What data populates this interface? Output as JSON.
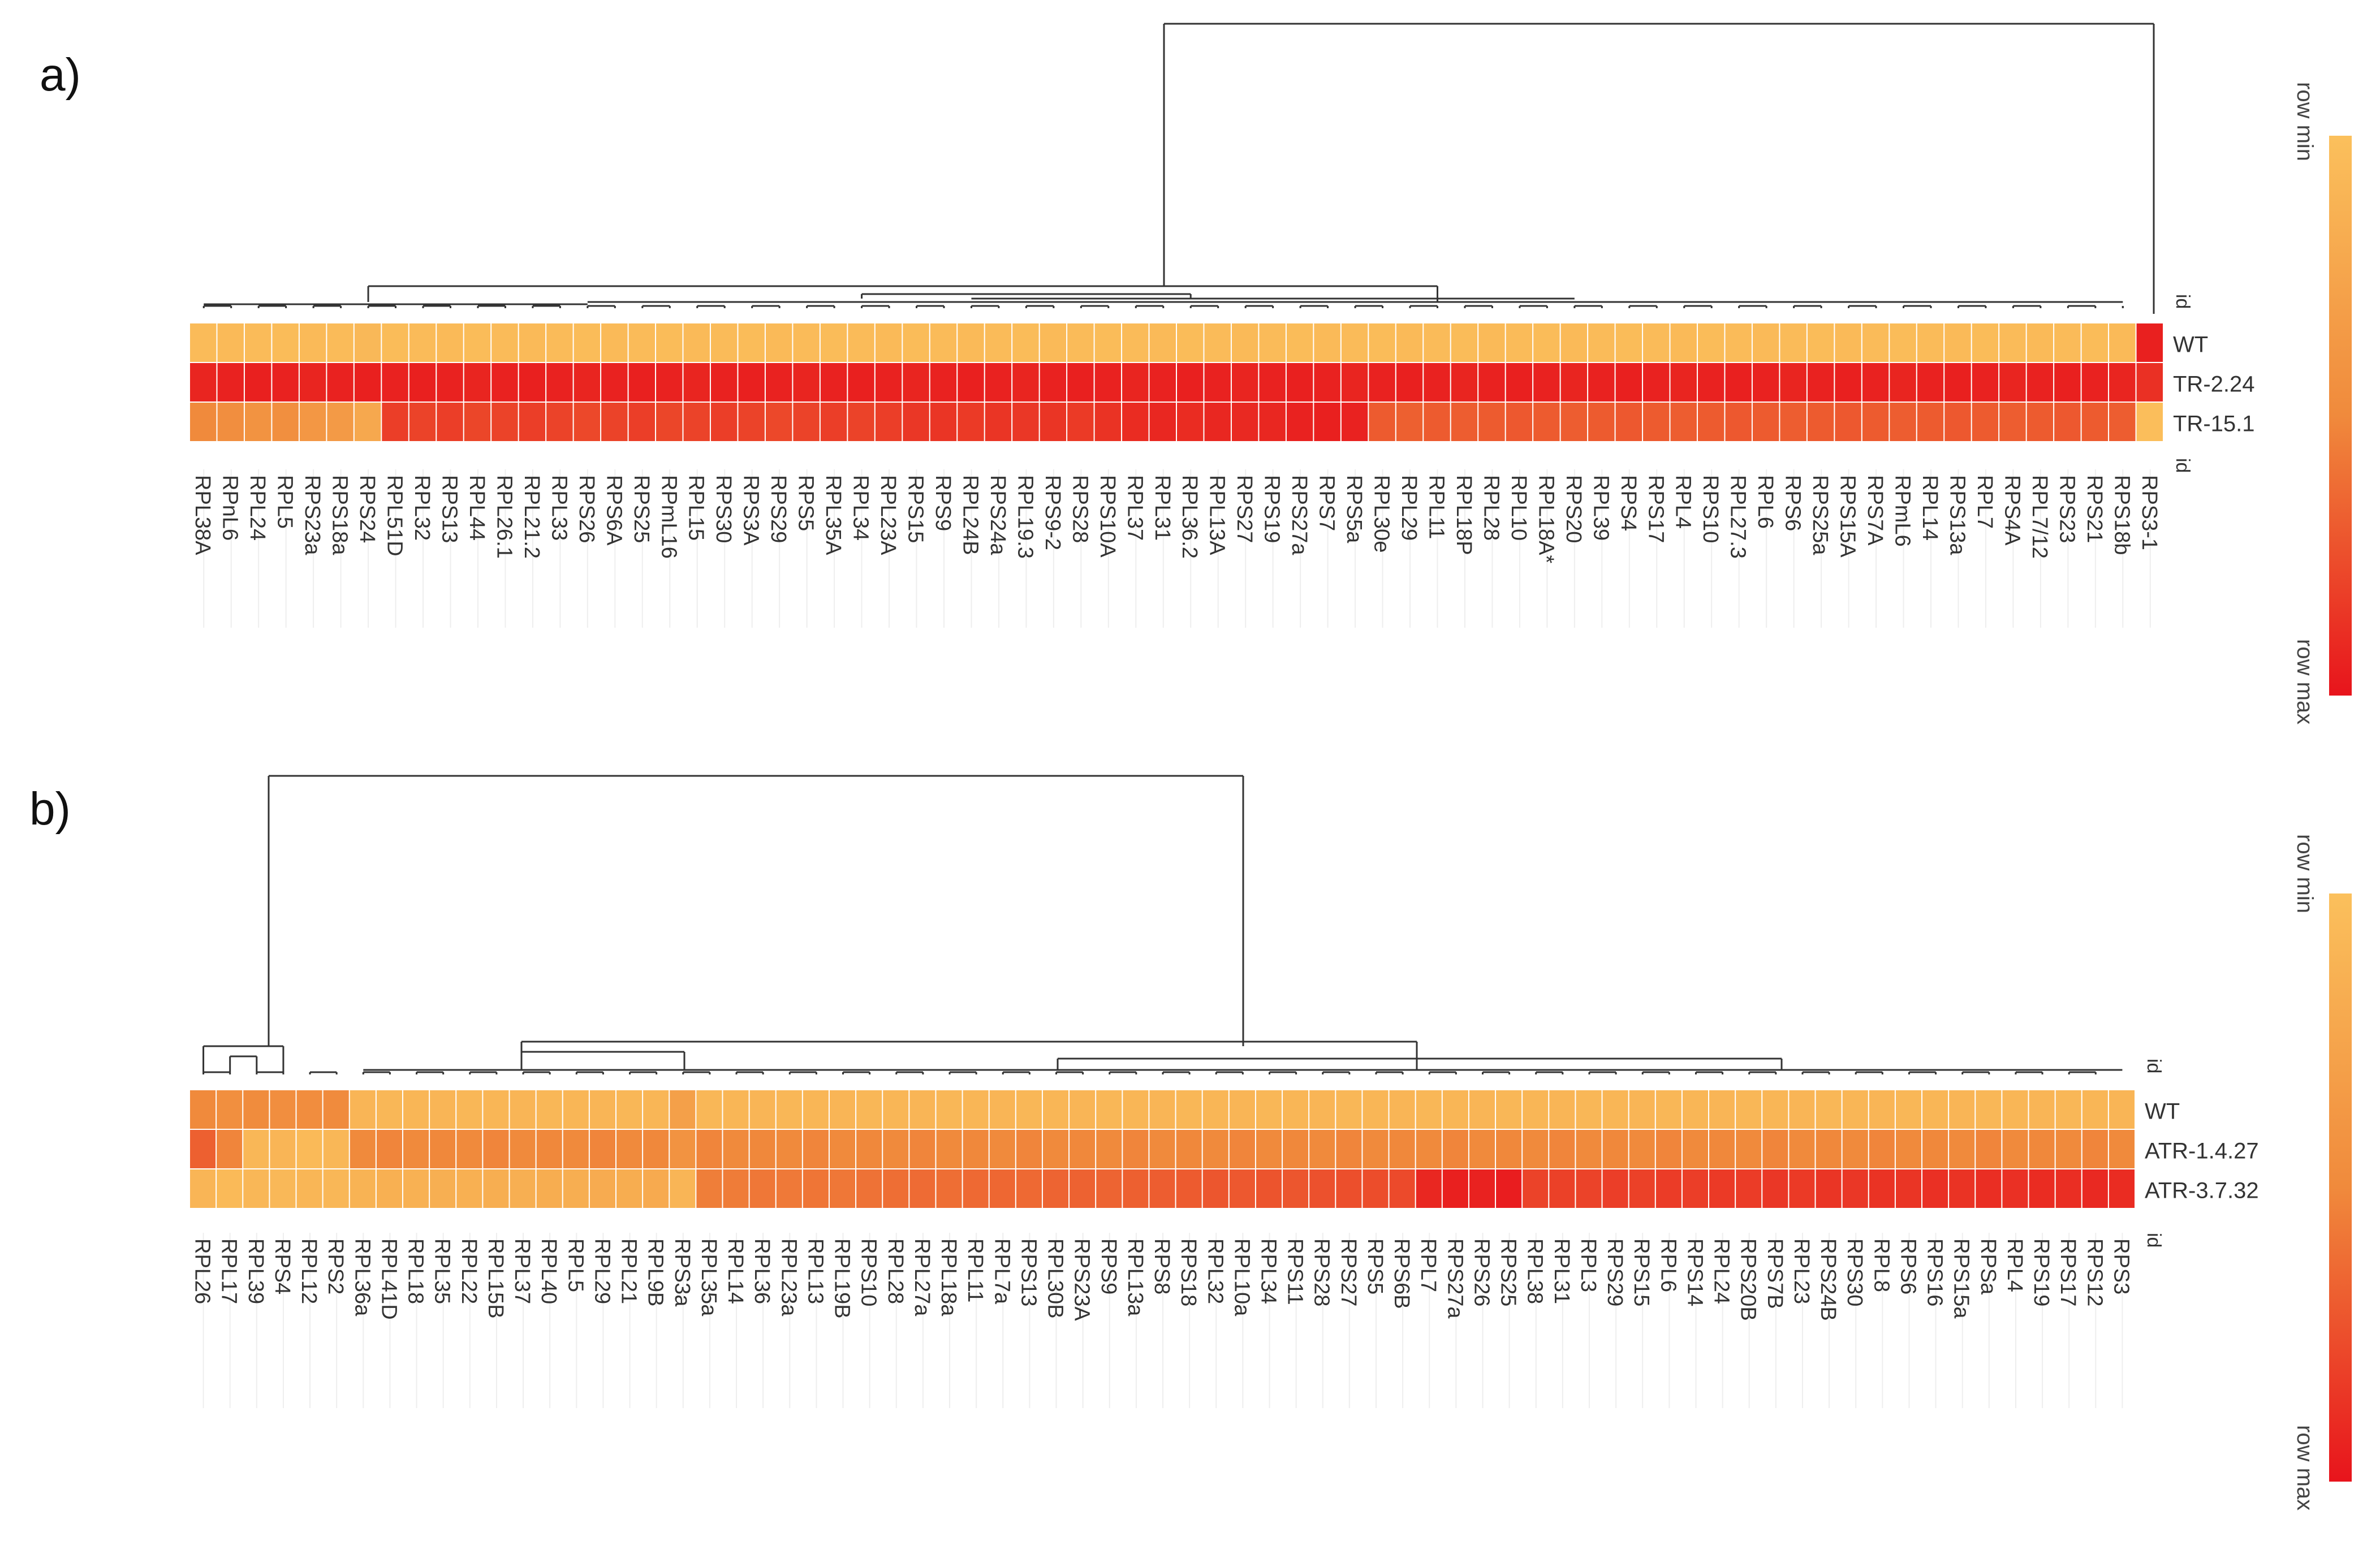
{
  "colors": {
    "min": "#fbc05c",
    "mid": "#f08a3c",
    "max": "#e8141c",
    "background": "#ffffff",
    "tree": "#333333"
  },
  "chart_data": [
    {
      "type": "heatmap",
      "panel_label": "a)",
      "id_header": "id",
      "rows": [
        "WT",
        "TR-2.24",
        "TR-15.1"
      ],
      "columns": [
        "RPL38A",
        "RPnL6",
        "RPL24",
        "RPL5",
        "RPS23a",
        "RPS18a",
        "RPS24",
        "RPL51D",
        "RPL32",
        "RPS13",
        "RPL44",
        "RPL26.1",
        "RPL21.2",
        "RPL33",
        "RPS26",
        "RPS6A",
        "RPS25",
        "RPmL16",
        "RPL15",
        "RPS30",
        "RPS3A",
        "RPS29",
        "RPS5",
        "RPL35A",
        "RPL34",
        "RPL23A",
        "RPS15",
        "RPS9",
        "RPL24B",
        "RPS24a",
        "RPL19.3",
        "RPS9-2",
        "RPS28",
        "RPS10A",
        "RPL37",
        "RPL31",
        "RPL36.2",
        "RPL13A",
        "RPS27",
        "RPS19",
        "RPS27a",
        "RPS7",
        "RPS5a",
        "RPL30e",
        "RPL29",
        "RPL11",
        "RPL18P",
        "RPL28",
        "RPL10",
        "RPL18A*",
        "RPS20",
        "RPL39",
        "RPS4",
        "RPS17",
        "RPL4",
        "RPS10",
        "RPL27.3",
        "RPL6",
        "RPS6",
        "RPS25a",
        "RPS15A",
        "RPS7A",
        "RPmL6",
        "RPL14",
        "RPS13a",
        "RPL7",
        "RPS4A",
        "RPL7/12",
        "RPS23",
        "RPS21",
        "RPS18b",
        "RPS3-1"
      ],
      "values": [
        [
          0.05,
          0.06,
          0.05,
          0.04,
          0.06,
          0.05,
          0.07,
          0.04,
          0.05,
          0.06,
          0.04,
          0.05,
          0.06,
          0.05,
          0.04,
          0.06,
          0.05,
          0.04,
          0.06,
          0.05,
          0.04,
          0.06,
          0.05,
          0.04,
          0.05,
          0.06,
          0.04,
          0.05,
          0.06,
          0.05,
          0.04,
          0.06,
          0.05,
          0.04,
          0.05,
          0.06,
          0.04,
          0.05,
          0.06,
          0.05,
          0.04,
          0.06,
          0.05,
          0.04,
          0.06,
          0.05,
          0.04,
          0.06,
          0.05,
          0.04,
          0.06,
          0.05,
          0.04,
          0.05,
          0.06,
          0.04,
          0.05,
          0.06,
          0.05,
          0.04,
          0.06,
          0.05,
          0.04,
          0.05,
          0.06,
          0.04,
          0.05,
          0.06,
          0.05,
          0.04,
          0.06,
          0.95
        ],
        [
          0.93,
          0.94,
          0.95,
          0.94,
          0.93,
          0.94,
          0.95,
          0.94,
          0.95,
          0.94,
          0.93,
          0.94,
          0.95,
          0.94,
          0.93,
          0.94,
          0.95,
          0.94,
          0.93,
          0.94,
          0.95,
          0.94,
          0.93,
          0.94,
          0.95,
          0.94,
          0.93,
          0.94,
          0.95,
          0.94,
          0.93,
          0.94,
          0.95,
          0.94,
          0.93,
          0.94,
          0.95,
          0.94,
          0.93,
          0.94,
          0.95,
          0.94,
          0.93,
          0.94,
          0.95,
          0.94,
          0.93,
          0.94,
          0.95,
          0.94,
          0.93,
          0.94,
          0.95,
          0.94,
          0.93,
          0.94,
          0.95,
          0.94,
          0.93,
          0.94,
          0.95,
          0.94,
          0.93,
          0.94,
          0.95,
          0.94,
          0.93,
          0.94,
          0.95,
          0.94,
          0.93,
          0.88
        ],
        [
          0.5,
          0.46,
          0.42,
          0.45,
          0.38,
          0.35,
          0.22,
          0.82,
          0.8,
          0.82,
          0.79,
          0.8,
          0.82,
          0.8,
          0.78,
          0.8,
          0.82,
          0.79,
          0.8,
          0.82,
          0.8,
          0.78,
          0.8,
          0.82,
          0.8,
          0.82,
          0.85,
          0.86,
          0.84,
          0.86,
          0.85,
          0.86,
          0.84,
          0.87,
          0.9,
          0.92,
          0.9,
          0.92,
          0.91,
          0.92,
          0.94,
          0.95,
          0.94,
          0.7,
          0.68,
          0.7,
          0.69,
          0.7,
          0.71,
          0.7,
          0.69,
          0.7,
          0.71,
          0.7,
          0.69,
          0.7,
          0.71,
          0.7,
          0.69,
          0.7,
          0.71,
          0.7,
          0.69,
          0.7,
          0.71,
          0.7,
          0.69,
          0.7,
          0.71,
          0.7,
          0.69,
          0.02
        ]
      ],
      "scale": {
        "min_label": "row min",
        "max_label": "row max"
      }
    },
    {
      "type": "heatmap",
      "panel_label": "b)",
      "id_header": "id",
      "rows": [
        "WT",
        "ATR-1.4.27",
        "ATR-3.7.32"
      ],
      "columns": [
        "RPL26",
        "RPL17",
        "RPL39",
        "RPS4",
        "RPL12",
        "RPS2",
        "RPL36a",
        "RPL41D",
        "RPL18",
        "RPL35",
        "RPL22",
        "RPL15B",
        "RPL37",
        "RPL40",
        "RPL5",
        "RPL29",
        "RPL21",
        "RPL9B",
        "RPS3a",
        "RPL35a",
        "RPL14",
        "RPL36",
        "RPL23a",
        "RPL13",
        "RPL19B",
        "RPS10",
        "RPL28",
        "RPL27a",
        "RPL18a",
        "RPL11",
        "RPL7a",
        "RPS13",
        "RPL30B",
        "RPS23A",
        "RPS9",
        "RPL13a",
        "RPS8",
        "RPS18",
        "RPL32",
        "RPL10a",
        "RPL34",
        "RPS11",
        "RPS28",
        "RPS27",
        "RPS5",
        "RPS6B",
        "RPL7",
        "RPS27a",
        "RPS26",
        "RPS25",
        "RPL38",
        "RPL31",
        "RPL3",
        "RPS29",
        "RPS15",
        "RPL6",
        "RPS14",
        "RPL24",
        "RPS20B",
        "RPS7B",
        "RPL23",
        "RPS24B",
        "RPS30",
        "RPL8",
        "RPS6",
        "RPS16",
        "RPS15a",
        "RPSa",
        "RPL4",
        "RPS19",
        "RPS17",
        "RPS12",
        "RPS3"
      ],
      "values": [
        [
          0.5,
          0.45,
          0.48,
          0.46,
          0.47,
          0.49,
          0.1,
          0.08,
          0.09,
          0.1,
          0.08,
          0.09,
          0.1,
          0.08,
          0.09,
          0.1,
          0.08,
          0.09,
          0.3,
          0.08,
          0.09,
          0.1,
          0.08,
          0.09,
          0.1,
          0.08,
          0.09,
          0.1,
          0.08,
          0.09,
          0.1,
          0.08,
          0.09,
          0.1,
          0.08,
          0.09,
          0.1,
          0.08,
          0.09,
          0.1,
          0.08,
          0.09,
          0.1,
          0.08,
          0.09,
          0.1,
          0.08,
          0.09,
          0.1,
          0.08,
          0.09,
          0.1,
          0.08,
          0.09,
          0.1,
          0.08,
          0.09,
          0.1,
          0.08,
          0.09,
          0.1,
          0.08,
          0.09,
          0.1,
          0.08,
          0.09,
          0.1,
          0.08,
          0.09,
          0.1,
          0.08,
          0.09,
          0.1
        ],
        [
          0.68,
          0.52,
          0.08,
          0.1,
          0.06,
          0.08,
          0.5,
          0.52,
          0.5,
          0.51,
          0.5,
          0.52,
          0.5,
          0.51,
          0.5,
          0.52,
          0.5,
          0.51,
          0.42,
          0.52,
          0.5,
          0.51,
          0.5,
          0.52,
          0.5,
          0.51,
          0.5,
          0.52,
          0.5,
          0.51,
          0.5,
          0.52,
          0.5,
          0.51,
          0.5,
          0.52,
          0.5,
          0.51,
          0.5,
          0.52,
          0.5,
          0.51,
          0.5,
          0.52,
          0.5,
          0.51,
          0.5,
          0.52,
          0.5,
          0.51,
          0.5,
          0.52,
          0.5,
          0.51,
          0.5,
          0.52,
          0.5,
          0.51,
          0.5,
          0.52,
          0.5,
          0.51,
          0.5,
          0.52,
          0.5,
          0.51,
          0.5,
          0.52,
          0.5,
          0.51,
          0.5,
          0.52,
          0.5
        ],
        [
          0.1,
          0.06,
          0.08,
          0.07,
          0.09,
          0.08,
          0.12,
          0.15,
          0.14,
          0.16,
          0.15,
          0.17,
          0.16,
          0.18,
          0.17,
          0.19,
          0.18,
          0.2,
          0.1,
          0.55,
          0.56,
          0.58,
          0.57,
          0.59,
          0.58,
          0.6,
          0.62,
          0.63,
          0.62,
          0.64,
          0.65,
          0.64,
          0.66,
          0.67,
          0.66,
          0.68,
          0.69,
          0.7,
          0.72,
          0.71,
          0.73,
          0.72,
          0.74,
          0.75,
          0.76,
          0.77,
          0.92,
          0.95,
          0.94,
          0.96,
          0.8,
          0.81,
          0.8,
          0.82,
          0.81,
          0.83,
          0.82,
          0.84,
          0.83,
          0.85,
          0.84,
          0.86,
          0.85,
          0.87,
          0.86,
          0.88,
          0.87,
          0.89,
          0.88,
          0.9,
          0.89,
          0.91,
          0.9
        ]
      ],
      "scale": {
        "min_label": "row min",
        "max_label": "row max"
      }
    }
  ]
}
